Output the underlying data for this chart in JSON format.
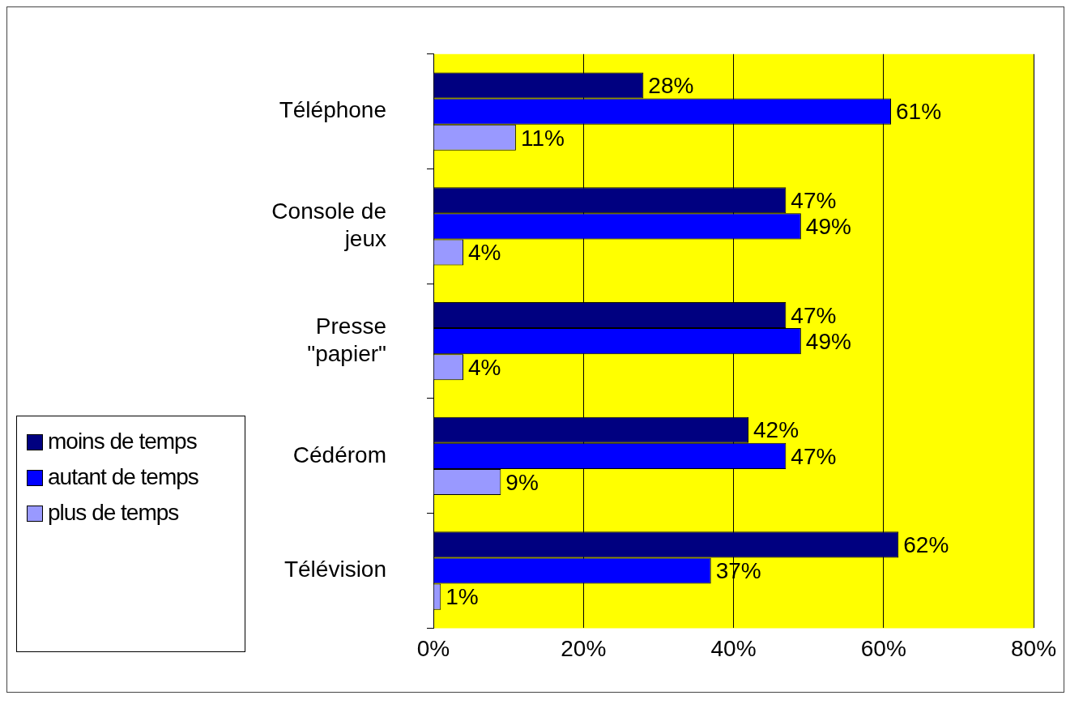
{
  "chart_data": {
    "type": "bar",
    "orientation": "horizontal",
    "categories": [
      "Téléphone",
      "Console de jeux",
      "Presse \"papier\"",
      "Cédérom",
      "Télévision"
    ],
    "series": [
      {
        "name": "moins de temps",
        "color": "#000080",
        "values": [
          28,
          47,
          47,
          42,
          62
        ],
        "value_labels": [
          "28%",
          "47%",
          "47%",
          "42%",
          "62%"
        ]
      },
      {
        "name": "autant de temps",
        "color": "#0000ff",
        "values": [
          61,
          49,
          49,
          47,
          37
        ],
        "value_labels": [
          "61%",
          "49%",
          "49%",
          "47%",
          "37%"
        ]
      },
      {
        "name": "plus de temps",
        "color": "#9999ff",
        "values": [
          11,
          4,
          4,
          9,
          1
        ],
        "value_labels": [
          "11%",
          "4%",
          "4%",
          "9%",
          "1%"
        ]
      }
    ],
    "xlim": [
      0,
      80
    ],
    "xticks": [
      {
        "value": 0,
        "label": "0%"
      },
      {
        "value": 20,
        "label": "20%"
      },
      {
        "value": 40,
        "label": "40%"
      },
      {
        "value": 60,
        "label": "60%"
      },
      {
        "value": 80,
        "label": "80%"
      }
    ],
    "grid": "x",
    "legend": "left"
  }
}
